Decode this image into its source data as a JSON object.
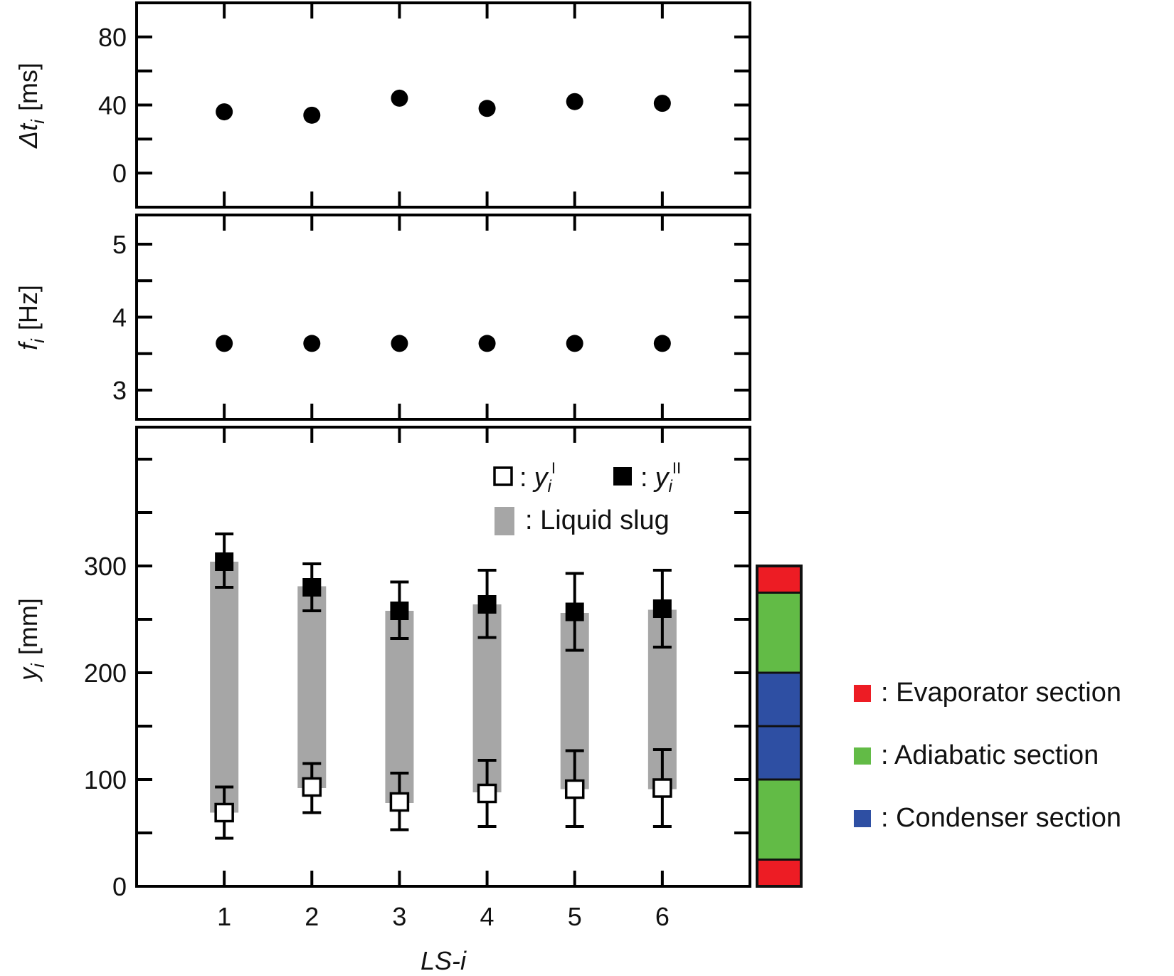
{
  "chart_data": [
    {
      "type": "scatter",
      "panel": "top",
      "ylabel_symbol": "Δt",
      "ylabel_sub": "i",
      "ylabel_unit": "[ms]",
      "ylim": [
        -20,
        100
      ],
      "yticks": [
        0,
        40,
        80
      ],
      "x": [
        1,
        2,
        3,
        4,
        5,
        6
      ],
      "values": [
        36,
        34,
        44,
        38,
        42,
        41
      ]
    },
    {
      "type": "scatter",
      "panel": "middle",
      "ylabel_symbol": "f",
      "ylabel_sub": "i",
      "ylabel_unit": "[Hz]",
      "ylim": [
        2.6,
        5.4
      ],
      "yticks": [
        3,
        4,
        5
      ],
      "x": [
        1,
        2,
        3,
        4,
        5,
        6
      ],
      "values": [
        3.64,
        3.64,
        3.64,
        3.64,
        3.64,
        3.64
      ]
    },
    {
      "type": "scatter",
      "panel": "bottom",
      "ylabel_symbol": "y",
      "ylabel_sub": "i",
      "ylabel_unit": "[mm]",
      "xlabel": "LS-i",
      "xlim": [
        0,
        7
      ],
      "ylim": [
        0,
        430
      ],
      "yticks": [
        0,
        100,
        200,
        300
      ],
      "yticks_minor": [
        50,
        150,
        250,
        350,
        400
      ],
      "categories": [
        "1",
        "2",
        "3",
        "4",
        "5",
        "6"
      ],
      "x": [
        1,
        2,
        3,
        4,
        5,
        6
      ],
      "series": [
        {
          "name": "y_i^I",
          "marker": "open-square",
          "values": [
            69,
            93,
            79,
            87,
            91,
            92
          ],
          "err_low": [
            45,
            69,
            53,
            56,
            56,
            56
          ],
          "err_high": [
            93,
            115,
            106,
            118,
            127,
            128
          ]
        },
        {
          "name": "y_i^II",
          "marker": "filled-square",
          "values": [
            304,
            280,
            258,
            264,
            257,
            260
          ],
          "err_low": [
            280,
            258,
            232,
            233,
            221,
            224
          ],
          "err_high": [
            330,
            302,
            285,
            296,
            293,
            296
          ]
        }
      ],
      "slug_bands": [
        {
          "low": 69,
          "high": 304
        },
        {
          "low": 92,
          "high": 281
        },
        {
          "low": 78,
          "high": 258
        },
        {
          "low": 88,
          "high": 264
        },
        {
          "low": 91,
          "high": 256
        },
        {
          "low": 91,
          "high": 259
        }
      ],
      "legend": {
        "y1_sym": "y",
        "y1_sub": "i",
        "y1_sup": "I",
        "y2_sym": "y",
        "y2_sub": "i",
        "y2_sup": "II",
        "slug_label": ": Liquid slug",
        "colon": ":"
      }
    }
  ],
  "section_bar": {
    "segments": [
      {
        "section": "evaporator",
        "from": 275,
        "to": 300
      },
      {
        "section": "adiabatic",
        "from": 200,
        "to": 275
      },
      {
        "section": "condenser",
        "from": 150,
        "to": 200
      },
      {
        "section": "condenser",
        "from": 100,
        "to": 150
      },
      {
        "section": "adiabatic",
        "from": 25,
        "to": 100
      },
      {
        "section": "evaporator",
        "from": 0,
        "to": 25
      }
    ]
  },
  "section_legend": [
    {
      "section": "evaporator",
      "label": ": Evaporator section",
      "color": "#ed1c24"
    },
    {
      "section": "adiabatic",
      "label": ": Adiabatic section",
      "color": "#62bb46"
    },
    {
      "section": "condenser",
      "label": ": Condenser section",
      "color": "#2e4fa3"
    }
  ],
  "colors": {
    "evaporator": "#ed1c24",
    "adiabatic": "#62bb46",
    "condenser": "#2e4fa3",
    "slug": "#a6a6a6",
    "marker": "#000000"
  }
}
